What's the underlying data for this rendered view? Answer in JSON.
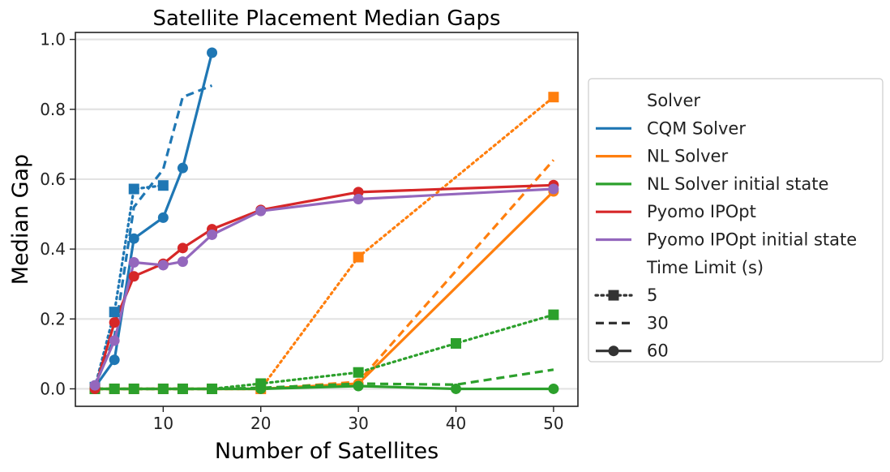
{
  "chart_data": {
    "type": "line",
    "title": "Satellite Placement Median Gaps",
    "xlabel": "Number of Satellites",
    "ylabel": "Median Gap",
    "xlim": [
      1,
      52.5
    ],
    "ylim": [
      -0.05,
      1.02
    ],
    "xticks": [
      10,
      20,
      30,
      40,
      50
    ],
    "yticks": [
      0.0,
      0.2,
      0.4,
      0.6,
      0.8,
      1.0
    ],
    "ytick_labels": [
      "0.0",
      "0.2",
      "0.4",
      "0.6",
      "0.8",
      "1.0"
    ],
    "grid": "horizontal",
    "legend_position": "outside-right",
    "legend": {
      "hue_title": "Solver",
      "style_title": "Time Limit (s)",
      "solvers": [
        {
          "name": "CQM Solver",
          "color": "#1f77b4"
        },
        {
          "name": "NL Solver",
          "color": "#ff7f0e"
        },
        {
          "name": "NL Solver initial state",
          "color": "#2ca02c"
        },
        {
          "name": "Pyomo IPOpt",
          "color": "#d62728"
        },
        {
          "name": "Pyomo IPOpt initial state",
          "color": "#9467bd"
        }
      ],
      "time_limits": [
        {
          "label": "5",
          "dash": "dotted",
          "marker": "square"
        },
        {
          "label": "30",
          "dash": "dashed",
          "marker": "x"
        },
        {
          "label": "60",
          "dash": "solid",
          "marker": "circle"
        }
      ]
    },
    "series": [
      {
        "solver": "CQM Solver",
        "time_limit": "5",
        "x": [
          3,
          5,
          7,
          10
        ],
        "y": [
          0.005,
          0.22,
          0.572,
          0.582
        ]
      },
      {
        "solver": "CQM Solver",
        "time_limit": "30",
        "x": [
          3,
          5,
          7,
          10,
          12,
          15
        ],
        "y": [
          0.005,
          0.15,
          0.52,
          0.628,
          0.835,
          0.868
        ]
      },
      {
        "solver": "CQM Solver",
        "time_limit": "60",
        "x": [
          3,
          5,
          7,
          10,
          12,
          15
        ],
        "y": [
          0.005,
          0.083,
          0.43,
          0.49,
          0.632,
          0.962
        ]
      },
      {
        "solver": "NL Solver",
        "time_limit": "5",
        "x": [
          3,
          5,
          7,
          10,
          12,
          15,
          20,
          30,
          50
        ],
        "y": [
          0.0,
          0.0,
          0.0,
          0.0,
          0.0,
          0.0,
          0.0,
          0.377,
          0.835
        ]
      },
      {
        "solver": "NL Solver",
        "time_limit": "30",
        "x": [
          3,
          5,
          7,
          10,
          12,
          15,
          20,
          30,
          50
        ],
        "y": [
          0.0,
          0.0,
          0.0,
          0.0,
          0.0,
          0.0,
          0.0,
          0.02,
          0.655
        ]
      },
      {
        "solver": "NL Solver",
        "time_limit": "60",
        "x": [
          3,
          5,
          7,
          10,
          12,
          15,
          20,
          30,
          50
        ],
        "y": [
          0.0,
          0.0,
          0.0,
          0.0,
          0.0,
          0.0,
          0.0,
          0.015,
          0.565
        ]
      },
      {
        "solver": "NL Solver initial state",
        "time_limit": "5",
        "x": [
          3,
          5,
          7,
          10,
          12,
          15,
          20,
          30,
          40,
          50
        ],
        "y": [
          0.0,
          0.0,
          0.0,
          0.0,
          0.0,
          0.0,
          0.015,
          0.047,
          0.13,
          0.212
        ]
      },
      {
        "solver": "NL Solver initial state",
        "time_limit": "30",
        "x": [
          3,
          5,
          7,
          10,
          12,
          15,
          20,
          30,
          40,
          50
        ],
        "y": [
          0.0,
          0.0,
          0.0,
          0.0,
          0.0,
          0.0,
          0.003,
          0.015,
          0.012,
          0.055
        ]
      },
      {
        "solver": "NL Solver initial state",
        "time_limit": "60",
        "x": [
          3,
          5,
          7,
          10,
          12,
          15,
          20,
          30,
          40,
          50
        ],
        "y": [
          0.0,
          0.0,
          0.0,
          0.0,
          0.0,
          0.0,
          0.0,
          0.008,
          0.0,
          0.0
        ]
      },
      {
        "solver": "Pyomo IPOpt",
        "time_limit": "60",
        "x": [
          3,
          5,
          7,
          10,
          12,
          15,
          20,
          30,
          50
        ],
        "y": [
          0.0,
          0.19,
          0.322,
          0.358,
          0.403,
          0.457,
          0.512,
          0.563,
          0.583
        ]
      },
      {
        "solver": "Pyomo IPOpt initial state",
        "time_limit": "60",
        "x": [
          3,
          5,
          7,
          10,
          12,
          15,
          20,
          30,
          50
        ],
        "y": [
          0.01,
          0.138,
          0.362,
          0.354,
          0.364,
          0.441,
          0.509,
          0.543,
          0.572
        ]
      }
    ]
  }
}
